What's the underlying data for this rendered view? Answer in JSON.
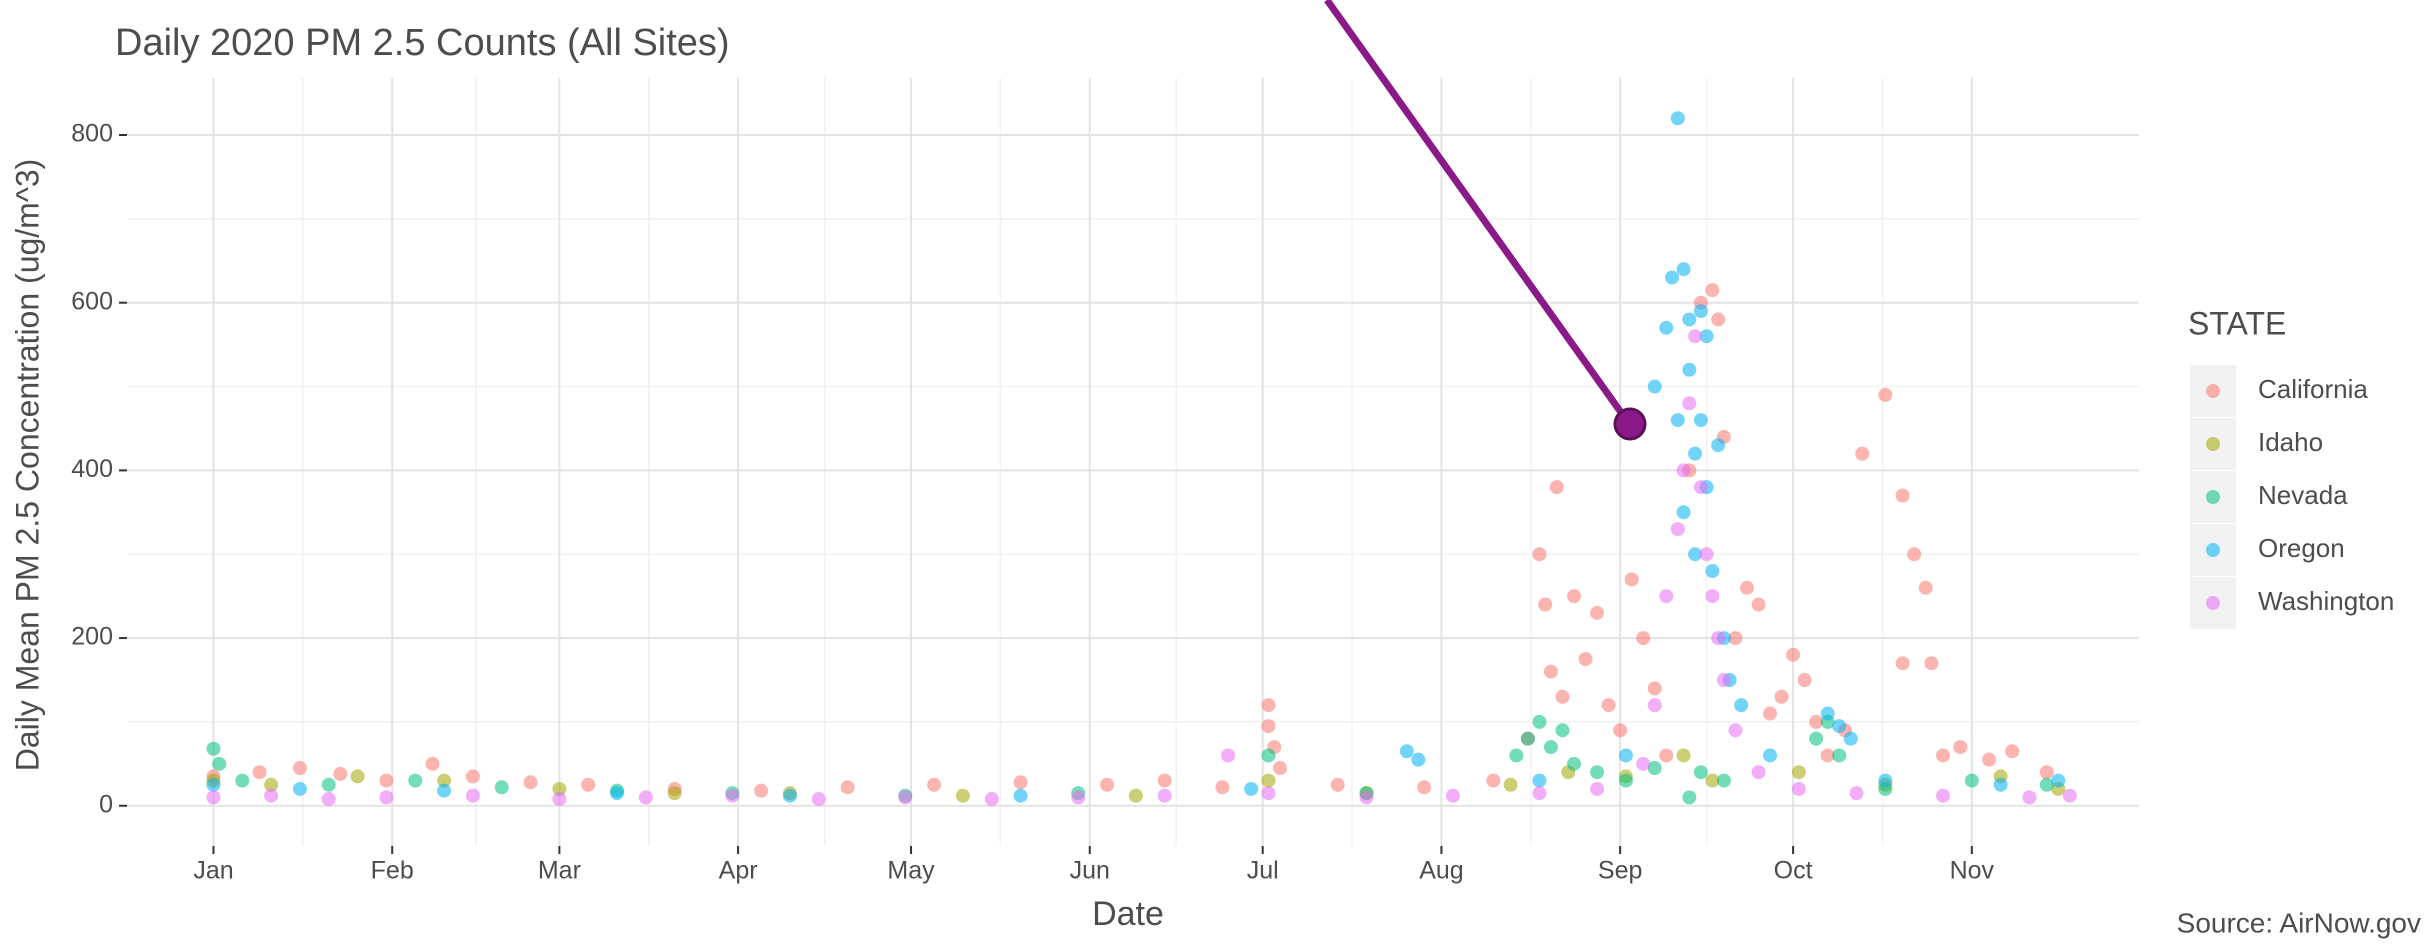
{
  "chart_data": {
    "type": "scatter",
    "title": "Daily 2020 PM 2.5 Counts (All Sites)",
    "x_label": "Date",
    "y_label": "Daily Mean PM 2.5 Concentration (ug/m^3)",
    "legend_title": "STATE",
    "source": "Source: AirNow.gov",
    "xlim": [
      -15,
      334
    ],
    "ylim": [
      -48,
      868
    ],
    "xticks": [
      {
        "value": 0,
        "label": "Jan"
      },
      {
        "value": 31,
        "label": "Feb"
      },
      {
        "value": 60,
        "label": "Mar"
      },
      {
        "value": 91,
        "label": "Apr"
      },
      {
        "value": 121,
        "label": "May"
      },
      {
        "value": 152,
        "label": "Jun"
      },
      {
        "value": 182,
        "label": "Jul"
      },
      {
        "value": 213,
        "label": "Aug"
      },
      {
        "value": 244,
        "label": "Sep"
      },
      {
        "value": 274,
        "label": "Oct"
      },
      {
        "value": 305,
        "label": "Nov"
      }
    ],
    "yticks": [
      0,
      200,
      400,
      600,
      800
    ],
    "grid": true,
    "legend": "right",
    "series": [
      {
        "name": "California",
        "color": "#F8766D",
        "x": [
          0,
          8,
          15,
          22,
          30,
          38,
          45,
          55,
          65,
          80,
          95,
          110,
          125,
          140,
          155,
          165,
          175,
          183,
          183,
          184,
          185,
          195,
          210,
          222,
          228,
          230,
          231,
          232,
          233,
          234,
          236,
          238,
          240,
          242,
          244,
          246,
          248,
          250,
          252,
          256,
          258,
          260,
          261,
          262,
          264,
          266,
          268,
          270,
          272,
          274,
          276,
          278,
          280,
          283,
          286,
          290,
          293,
          293,
          295,
          297,
          298,
          300,
          303,
          308,
          312,
          318
        ],
        "values": [
          35,
          40,
          45,
          38,
          30,
          50,
          35,
          28,
          25,
          20,
          18,
          22,
          25,
          28,
          25,
          30,
          22,
          120,
          95,
          70,
          45,
          25,
          22,
          30,
          80,
          300,
          240,
          160,
          380,
          130,
          250,
          175,
          230,
          120,
          90,
          270,
          200,
          140,
          60,
          400,
          600,
          615,
          580,
          440,
          200,
          260,
          240,
          110,
          130,
          180,
          150,
          100,
          60,
          90,
          420,
          490,
          370,
          170,
          300,
          260,
          170,
          60,
          70,
          55,
          65,
          40
        ]
      },
      {
        "name": "Idaho",
        "color": "#A3A500",
        "x": [
          0,
          10,
          25,
          40,
          60,
          80,
          100,
          130,
          160,
          183,
          200,
          225,
          235,
          245,
          255,
          260,
          275,
          290,
          310,
          320
        ],
        "values": [
          30,
          25,
          35,
          30,
          20,
          15,
          15,
          12,
          12,
          30,
          15,
          25,
          40,
          35,
          60,
          30,
          40,
          25,
          35,
          20
        ]
      },
      {
        "name": "Nevada",
        "color": "#00BF7D",
        "x": [
          0,
          1,
          5,
          20,
          35,
          50,
          70,
          90,
          120,
          150,
          183,
          200,
          226,
          228,
          230,
          232,
          234,
          236,
          240,
          245,
          250,
          256,
          258,
          262,
          278,
          280,
          282,
          290,
          305,
          318
        ],
        "values": [
          68,
          50,
          30,
          25,
          30,
          22,
          18,
          15,
          12,
          15,
          60,
          15,
          60,
          80,
          100,
          70,
          90,
          50,
          40,
          30,
          45,
          10,
          40,
          30,
          80,
          100,
          60,
          20,
          30,
          25
        ]
      },
      {
        "name": "Oregon",
        "color": "#00B0F6",
        "x": [
          0,
          15,
          40,
          70,
          100,
          140,
          180,
          207,
          209,
          230,
          245,
          250,
          252,
          253,
          254,
          254,
          255,
          255,
          256,
          256,
          257,
          257,
          258,
          258,
          259,
          259,
          260,
          261,
          262,
          263,
          265,
          270,
          280,
          282,
          284,
          290,
          310,
          320
        ],
        "values": [
          25,
          20,
          18,
          15,
          12,
          12,
          20,
          65,
          55,
          30,
          60,
          500,
          570,
          630,
          820,
          460,
          640,
          350,
          580,
          520,
          420,
          300,
          590,
          460,
          560,
          380,
          280,
          430,
          200,
          150,
          120,
          60,
          110,
          95,
          80,
          30,
          25,
          30
        ]
      },
      {
        "name": "Washington",
        "color": "#E76BF3",
        "x": [
          0,
          10,
          20,
          30,
          45,
          60,
          75,
          90,
          105,
          120,
          135,
          150,
          165,
          176,
          183,
          200,
          215,
          230,
          240,
          248,
          250,
          252,
          254,
          255,
          256,
          257,
          258,
          259,
          260,
          261,
          262,
          264,
          268,
          275,
          285,
          300,
          315,
          322
        ],
        "values": [
          10,
          12,
          8,
          10,
          12,
          8,
          10,
          12,
          8,
          10,
          8,
          10,
          12,
          60,
          15,
          10,
          12,
          15,
          20,
          50,
          120,
          250,
          330,
          400,
          480,
          560,
          380,
          300,
          250,
          200,
          150,
          90,
          40,
          20,
          15,
          12,
          10,
          12
        ]
      }
    ]
  }
}
